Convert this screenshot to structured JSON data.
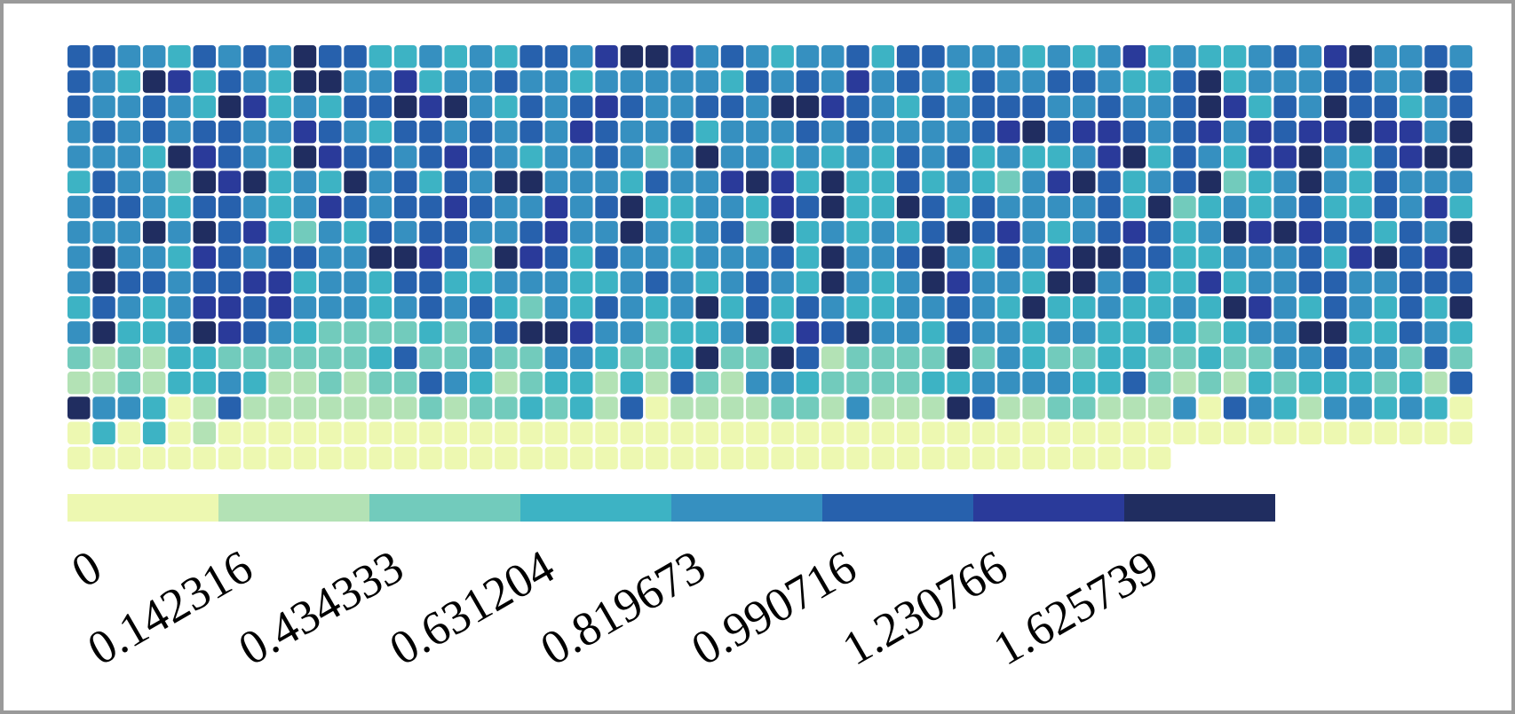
{
  "chart_data": {
    "type": "heatmap",
    "colorbar": {
      "thresholds": [
        0,
        0.142316,
        0.434333,
        0.631204,
        0.819673,
        0.990716,
        1.230766,
        1.625739
      ],
      "colors": [
        "#edf8b1",
        "#b3e2b5",
        "#72cbbc",
        "#3db3c4",
        "#3690c0",
        "#2761ad",
        "#2a3a9a",
        "#202d60"
      ]
    },
    "values": [
      [
        1.1,
        1.1,
        0.9,
        0.9,
        0.7,
        1.1,
        0.9,
        1.1,
        0.9,
        1.8,
        1.1,
        1.1,
        0.7,
        0.7,
        0.9,
        0.7,
        0.9,
        0.7,
        1.1,
        1.1,
        0.9,
        1.4,
        1.8,
        1.8,
        1.4,
        0.9,
        1.1,
        0.9,
        0.7,
        0.9,
        0.9,
        1.1,
        0.7,
        1.1,
        1.1,
        0.9,
        0.9,
        0.9,
        0.7,
        0.9,
        0.7,
        0.9,
        1.4,
        0.7,
        0.9,
        0.7,
        0.7,
        0.9,
        1.1,
        0.9,
        1.4,
        1.8,
        0.9,
        0.9,
        1.1,
        0.9
      ],
      [
        1.1,
        0.9,
        0.7,
        1.8,
        1.4,
        0.7,
        1.1,
        0.9,
        0.7,
        1.8,
        1.8,
        0.9,
        0.9,
        1.4,
        0.7,
        0.9,
        0.9,
        1.1,
        0.9,
        0.9,
        0.7,
        0.9,
        0.9,
        0.9,
        0.9,
        0.9,
        0.7,
        1.1,
        0.9,
        1.1,
        0.9,
        1.4,
        0.9,
        1.1,
        0.9,
        0.7,
        1.1,
        0.9,
        0.9,
        1.1,
        1.1,
        0.9,
        0.7,
        0.7,
        1.1,
        1.8,
        0.7,
        0.9,
        0.9,
        0.9,
        1.1,
        1.1,
        0.9,
        0.9,
        1.8,
        1.1
      ],
      [
        1.1,
        0.9,
        0.9,
        1.1,
        0.9,
        0.7,
        1.8,
        1.4,
        0.7,
        0.9,
        0.7,
        1.1,
        1.1,
        1.8,
        1.4,
        1.8,
        0.9,
        0.7,
        1.1,
        0.9,
        1.1,
        1.4,
        1.1,
        0.9,
        0.9,
        1.1,
        1.1,
        0.9,
        1.8,
        1.8,
        1.4,
        1.1,
        0.9,
        0.7,
        1.1,
        0.9,
        1.1,
        1.1,
        1.1,
        0.9,
        0.9,
        1.1,
        0.9,
        0.9,
        1.1,
        1.8,
        1.4,
        0.7,
        1.1,
        0.9,
        1.8,
        1.1,
        1.1,
        0.7,
        0.9,
        1.1
      ],
      [
        0.9,
        1.1,
        0.9,
        1.1,
        0.9,
        1.1,
        1.1,
        0.9,
        0.9,
        1.4,
        1.1,
        0.9,
        0.7,
        1.1,
        1.1,
        0.9,
        1.1,
        0.9,
        1.1,
        0.9,
        1.4,
        1.1,
        0.9,
        0.9,
        1.1,
        0.7,
        0.9,
        0.9,
        0.9,
        1.1,
        0.9,
        1.1,
        0.9,
        0.9,
        0.9,
        0.9,
        1.1,
        1.4,
        1.8,
        1.1,
        1.4,
        1.4,
        1.1,
        0.9,
        1.1,
        1.4,
        0.9,
        1.4,
        1.1,
        1.4,
        1.4,
        1.8,
        1.4,
        1.4,
        0.9,
        1.8
      ],
      [
        0.9,
        0.9,
        0.9,
        0.7,
        1.8,
        1.4,
        1.1,
        0.9,
        0.7,
        1.8,
        1.4,
        1.1,
        1.1,
        0.9,
        1.1,
        1.4,
        1.1,
        0.9,
        0.7,
        0.9,
        0.9,
        1.1,
        0.9,
        0.5,
        0.9,
        1.8,
        0.9,
        0.9,
        0.7,
        0.9,
        0.7,
        0.9,
        0.7,
        1.1,
        0.9,
        1.1,
        0.7,
        0.9,
        0.7,
        0.7,
        0.9,
        1.4,
        1.8,
        0.7,
        1.1,
        0.9,
        0.7,
        1.4,
        1.4,
        1.8,
        0.9,
        0.7,
        1.1,
        1.4,
        1.8,
        1.8
      ],
      [
        0.7,
        1.1,
        0.9,
        0.9,
        0.5,
        1.8,
        1.4,
        1.8,
        0.7,
        0.9,
        0.7,
        1.8,
        0.9,
        1.1,
        0.7,
        1.1,
        0.9,
        1.8,
        1.8,
        0.9,
        0.9,
        0.9,
        0.7,
        1.1,
        0.9,
        0.9,
        1.4,
        1.8,
        1.4,
        0.7,
        1.8,
        0.7,
        0.7,
        1.1,
        0.7,
        0.9,
        0.7,
        0.5,
        0.9,
        1.4,
        1.8,
        1.1,
        0.7,
        0.9,
        1.1,
        1.8,
        0.5,
        0.7,
        0.9,
        1.8,
        0.9,
        0.7,
        1.1,
        0.9,
        0.9,
        0.9
      ],
      [
        0.9,
        1.1,
        1.1,
        0.9,
        0.7,
        1.1,
        1.1,
        0.9,
        0.7,
        0.9,
        1.4,
        1.1,
        0.9,
        1.1,
        1.1,
        1.4,
        1.1,
        0.9,
        0.9,
        1.4,
        0.9,
        1.1,
        1.8,
        0.7,
        0.7,
        0.9,
        0.9,
        0.7,
        1.4,
        1.1,
        1.8,
        0.7,
        0.7,
        1.8,
        1.1,
        0.7,
        1.1,
        0.9,
        0.9,
        0.9,
        0.9,
        1.1,
        0.7,
        1.8,
        0.5,
        0.7,
        0.9,
        0.7,
        0.9,
        1.1,
        0.7,
        0.7,
        1.1,
        0.9,
        1.4,
        0.7
      ],
      [
        0.9,
        0.9,
        0.9,
        1.8,
        0.9,
        1.8,
        1.1,
        1.4,
        0.7,
        0.5,
        0.9,
        0.7,
        1.1,
        0.9,
        1.1,
        1.1,
        0.9,
        0.9,
        1.1,
        1.4,
        0.9,
        0.9,
        1.8,
        0.9,
        0.7,
        0.9,
        1.1,
        0.5,
        1.8,
        0.7,
        0.9,
        0.7,
        0.9,
        0.7,
        1.1,
        1.8,
        1.1,
        1.4,
        0.9,
        0.7,
        0.9,
        1.1,
        1.4,
        1.1,
        0.7,
        0.9,
        1.8,
        1.4,
        1.8,
        1.4,
        1.1,
        1.1,
        0.7,
        1.1,
        0.9,
        1.8
      ],
      [
        0.9,
        1.8,
        0.9,
        0.9,
        0.7,
        1.4,
        1.1,
        0.9,
        1.1,
        1.1,
        0.9,
        0.9,
        1.8,
        1.8,
        1.4,
        1.1,
        0.5,
        1.8,
        1.4,
        1.1,
        0.7,
        1.1,
        0.9,
        0.9,
        0.7,
        0.9,
        0.9,
        0.9,
        1.1,
        0.7,
        1.8,
        0.9,
        0.9,
        1.1,
        1.8,
        0.9,
        0.7,
        1.1,
        0.9,
        1.4,
        1.8,
        1.8,
        1.1,
        1.1,
        0.7,
        0.7,
        0.9,
        0.9,
        0.9,
        1.1,
        0.7,
        1.4,
        1.8,
        1.1,
        1.4,
        1.8
      ],
      [
        0.9,
        1.8,
        1.1,
        1.1,
        0.9,
        1.1,
        1.1,
        1.4,
        1.4,
        0.7,
        0.9,
        0.9,
        0.7,
        1.1,
        1.1,
        0.7,
        0.7,
        0.9,
        0.9,
        0.9,
        0.7,
        0.7,
        0.9,
        1.1,
        0.9,
        0.7,
        0.9,
        1.1,
        0.9,
        0.7,
        1.8,
        0.9,
        0.7,
        0.9,
        1.8,
        1.4,
        0.9,
        0.9,
        0.7,
        1.8,
        1.8,
        0.9,
        1.1,
        0.7,
        0.7,
        1.4,
        0.7,
        0.9,
        0.9,
        1.1,
        1.1,
        0.9,
        0.9,
        1.1,
        1.1,
        1.1
      ],
      [
        0.7,
        1.1,
        0.9,
        0.7,
        0.9,
        1.4,
        1.4,
        1.1,
        1.4,
        0.9,
        0.9,
        0.9,
        0.7,
        0.9,
        1.1,
        0.9,
        1.1,
        0.7,
        0.5,
        0.9,
        0.7,
        1.1,
        0.9,
        0.7,
        0.9,
        1.8,
        0.7,
        1.1,
        0.7,
        1.1,
        0.9,
        0.7,
        0.7,
        0.9,
        0.9,
        1.1,
        0.9,
        0.7,
        1.8,
        0.7,
        0.7,
        0.9,
        0.7,
        0.7,
        0.9,
        0.7,
        1.8,
        1.4,
        0.9,
        0.7,
        1.1,
        0.9,
        0.7,
        1.1,
        0.7,
        1.8
      ],
      [
        0.9,
        1.8,
        0.7,
        0.7,
        0.9,
        1.8,
        1.4,
        1.1,
        0.9,
        0.7,
        0.5,
        0.5,
        0.5,
        0.5,
        0.7,
        0.5,
        0.9,
        1.1,
        1.8,
        1.8,
        1.4,
        0.9,
        0.9,
        0.5,
        0.7,
        0.7,
        0.9,
        1.8,
        0.7,
        1.4,
        1.1,
        1.8,
        0.9,
        0.9,
        0.7,
        1.1,
        0.9,
        0.9,
        0.7,
        0.9,
        0.9,
        0.7,
        0.7,
        0.9,
        0.7,
        0.5,
        0.7,
        0.9,
        0.9,
        1.8,
        1.8,
        0.7,
        0.7,
        1.1,
        0.9,
        0.7
      ],
      [
        0.5,
        0.3,
        0.5,
        0.3,
        0.7,
        0.7,
        0.5,
        0.5,
        0.5,
        0.5,
        0.5,
        0.5,
        0.7,
        1.1,
        0.5,
        0.5,
        0.9,
        0.5,
        0.5,
        0.9,
        0.9,
        0.7,
        0.5,
        0.5,
        0.7,
        1.8,
        0.5,
        0.5,
        1.8,
        1.1,
        0.3,
        0.5,
        0.5,
        0.5,
        0.5,
        1.8,
        0.5,
        0.9,
        0.7,
        0.5,
        0.5,
        0.7,
        0.7,
        0.5,
        0.5,
        0.7,
        0.5,
        0.5,
        0.9,
        0.9,
        1.1,
        0.9,
        0.9,
        0.5,
        1.1,
        0.5
      ],
      [
        0.3,
        0.3,
        0.5,
        0.3,
        0.7,
        0.7,
        0.9,
        0.7,
        0.3,
        0.3,
        0.5,
        0.3,
        0.5,
        0.5,
        1.1,
        0.9,
        0.7,
        0.3,
        0.5,
        0.7,
        0.7,
        0.3,
        0.7,
        0.3,
        1.1,
        0.5,
        0.3,
        0.9,
        0.9,
        0.7,
        0.5,
        0.5,
        0.5,
        0.5,
        0.7,
        0.7,
        0.9,
        0.9,
        0.9,
        0.9,
        0.7,
        0.7,
        1.1,
        0.5,
        0.3,
        0.5,
        0.3,
        0.7,
        0.5,
        0.7,
        0.7,
        0.7,
        0.5,
        0.7,
        0.3,
        1.1
      ],
      [
        1.8,
        0.9,
        0.9,
        0.7,
        0.1,
        0.3,
        1.1,
        0.3,
        0.3,
        0.3,
        0.3,
        0.3,
        0.3,
        0.3,
        0.5,
        0.3,
        0.5,
        0.5,
        0.7,
        0.5,
        0.7,
        0.3,
        1.1,
        0.1,
        0.3,
        0.3,
        0.3,
        0.3,
        0.5,
        0.5,
        0.3,
        0.9,
        0.3,
        0.3,
        0.3,
        1.8,
        1.1,
        0.3,
        0.3,
        0.5,
        0.5,
        0.3,
        0.3,
        0.3,
        0.9,
        0.1,
        1.1,
        0.9,
        0.7,
        0.3,
        0.9,
        0.9,
        0.7,
        0.9,
        0.7,
        0.1
      ],
      [
        0.1,
        0.7,
        0.1,
        0.7,
        0.1,
        0.3,
        0.1,
        0.1,
        0.1,
        0.1,
        0.1,
        0.1,
        0.1,
        0.1,
        0.1,
        0.1,
        0.1,
        0.1,
        0.1,
        0.1,
        0.1,
        0.1,
        0.1,
        0.1,
        0.1,
        0.1,
        0.1,
        0.1,
        0.1,
        0.1,
        0.1,
        0.1,
        0.1,
        0.1,
        0.1,
        0.1,
        0.1,
        0.1,
        0.1,
        0.1,
        0.1,
        0.1,
        0.1,
        0.1,
        0.1,
        0.1,
        0.1,
        0.1,
        0.1,
        0.1,
        0.1,
        0.1,
        0.1,
        0.1,
        0.1,
        0.1
      ],
      [
        0.1,
        0.1,
        0.1,
        0.1,
        0.1,
        0.1,
        0.1,
        0.1,
        0.1,
        0.1,
        0.1,
        0.1,
        0.1,
        0.1,
        0.1,
        0.1,
        0.1,
        0.1,
        0.1,
        0.1,
        0.1,
        0.1,
        0.1,
        0.1,
        0.1,
        0.1,
        0.1,
        0.1,
        0.1,
        0.1,
        0.1,
        0.1,
        0.1,
        0.1,
        0.1,
        0.1,
        0.1,
        0.1,
        0.1,
        0.1,
        0.1,
        0.1,
        0.1,
        0.1,
        null,
        null,
        null,
        null,
        null,
        null,
        null,
        null,
        null,
        null,
        null,
        null
      ]
    ]
  }
}
